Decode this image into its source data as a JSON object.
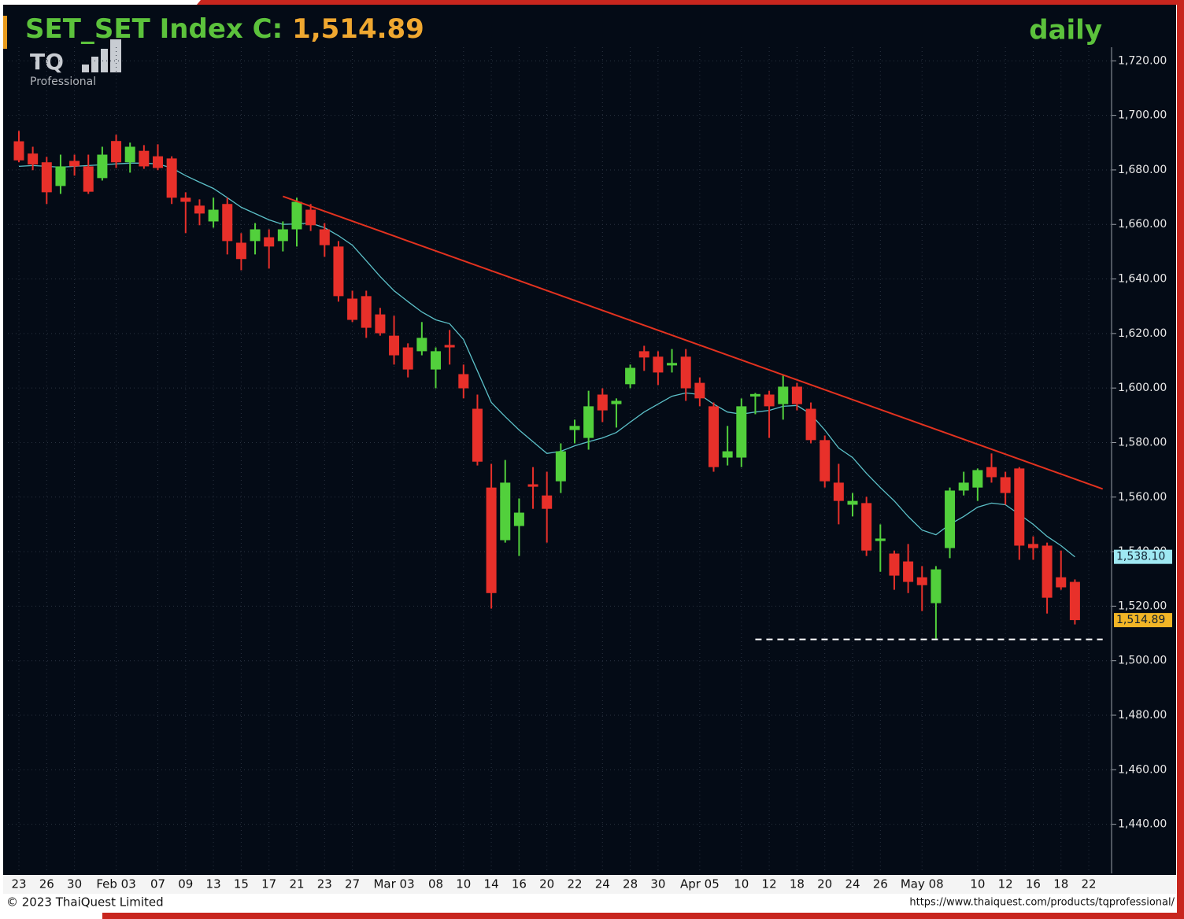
{
  "chart_data": {
    "type": "candlestick",
    "title": "SET_SET Index C:",
    "title_value": "1,514.89",
    "period": "daily",
    "logo": "TQ",
    "logo_sub": "Professional",
    "categories": [
      "23",
      null,
      "26",
      null,
      "30",
      null,
      null,
      "Feb 03",
      null,
      null,
      "07",
      null,
      "09",
      null,
      "13",
      null,
      "15",
      null,
      "17",
      null,
      "21",
      null,
      "23",
      null,
      "27",
      null,
      null,
      "Mar 03",
      null,
      null,
      "08",
      null,
      "10",
      null,
      "14",
      null,
      "16",
      null,
      "20",
      null,
      "22",
      null,
      "24",
      null,
      "28",
      null,
      "30",
      null,
      null,
      "Apr 05",
      null,
      null,
      "10",
      null,
      "12",
      null,
      "18",
      null,
      "20",
      null,
      "24",
      null,
      "26",
      null,
      null,
      "May 08",
      null,
      null,
      null,
      "10",
      null,
      "12",
      null,
      "16",
      null,
      "18",
      null,
      "22"
    ],
    "open": [
      1690.5,
      1686,
      1682.8,
      1674.1,
      1683.3,
      1681.3,
      1677,
      1690.6,
      1682.8,
      1687,
      1685,
      1684.2,
      1669.8,
      1666.9,
      1661.1,
      1667.5,
      1653.3,
      1653.9,
      1655.3,
      1653.9,
      1658.2,
      1665.4,
      1658.2,
      1651.9,
      1632.8,
      1633.7,
      1627,
      1619.2,
      1614.9,
      1613.5,
      1606.8,
      1615.8,
      1605.1,
      1592.4,
      1563.5,
      1544.2,
      1549.4,
      1564.7,
      1560.6,
      1565.8,
      1584.6,
      1581.7,
      1597.6,
      1594.1,
      1601.4,
      1613.5,
      1611.5,
      1608.3,
      1611.5,
      1601.9,
      1593.3,
      1574.5,
      1574.5,
      1596.9,
      1597.6,
      1594.1,
      1600.5,
      1592.4,
      1580.9,
      1565.3,
      1557.2,
      1557.8,
      1543.9,
      1539.3,
      1536.4,
      1530.6,
      1521.1,
      1541.3,
      1562.4,
      1563.5,
      1571,
      1567.3,
      1570.5,
      1542.8,
      1542.2,
      1530.6,
      1528.9,
      null
    ],
    "high": [
      1694.3,
      1688.5,
      1684.8,
      1685.6,
      1685.6,
      1685.6,
      1688.5,
      1692.9,
      1690,
      1689.1,
      1689.4,
      1685,
      1671.8,
      1669.2,
      1669.8,
      1669.8,
      1656.8,
      1660.5,
      1658.2,
      1661.1,
      1669.8,
      1667.5,
      1660.5,
      1653.9,
      1635.7,
      1635.7,
      1629.4,
      1626.5,
      1616.4,
      1624.2,
      1614.9,
      1621.3,
      1608.6,
      1597.6,
      1572.2,
      1573.6,
      1559.5,
      1571,
      1569.3,
      1579.7,
      1588.4,
      1599,
      1599.9,
      1596.2,
      1608.6,
      1615.5,
      1613.5,
      1614.3,
      1614.3,
      1603.9,
      1594.7,
      1586.1,
      1596.2,
      1598.2,
      1599,
      1604.8,
      1601.9,
      1594.7,
      1582.6,
      1572.2,
      1561.5,
      1560.1,
      1550,
      1540.4,
      1542.8,
      1534.7,
      1534.7,
      1563.5,
      1569.3,
      1570.5,
      1576,
      1569.3,
      1571,
      1545.6,
      1543.3,
      1540.4,
      1529.8,
      null
    ],
    "low": [
      1682.8,
      1679.9,
      1667.5,
      1671.2,
      1677.9,
      1671.2,
      1676.1,
      1680.7,
      1679,
      1680.4,
      1679.9,
      1667.5,
      1656.8,
      1659.7,
      1658.8,
      1649,
      1643.2,
      1649,
      1643.8,
      1650.1,
      1651.9,
      1657.6,
      1648.1,
      1631.7,
      1624.2,
      1618.4,
      1619.2,
      1608.6,
      1603.9,
      1612,
      1599.9,
      1608.6,
      1596.2,
      1571.6,
      1519.1,
      1543.3,
      1538.4,
      1555.7,
      1543.3,
      1561.5,
      1579.7,
      1577.4,
      1587.5,
      1585.5,
      1599.9,
      1606.3,
      1601.1,
      1605.7,
      1595.3,
      1593.3,
      1569.3,
      1571.6,
      1571,
      1590.4,
      1581.7,
      1588.4,
      1591.8,
      1579.7,
      1563.5,
      1550,
      1552.9,
      1538.4,
      1532.6,
      1526,
      1524.8,
      1518.2,
      1508.1,
      1537.6,
      1560.6,
      1558.6,
      1565.3,
      1557.2,
      1537,
      1537,
      1517.3,
      1526,
      1513.3,
      null
    ],
    "close": [
      1683.5,
      1682,
      1671.8,
      1681.3,
      1681.3,
      1672,
      1685.6,
      1682.8,
      1688.5,
      1681.3,
      1680.7,
      1669.8,
      1668.3,
      1664,
      1665.4,
      1653.9,
      1647.3,
      1658.2,
      1651.9,
      1658.2,
      1668.3,
      1659.7,
      1652.4,
      1633.7,
      1625,
      1622.1,
      1620.1,
      1612,
      1606.8,
      1618.4,
      1613.5,
      1614.9,
      1599.9,
      1573,
      1524.8,
      1565.3,
      1554.3,
      1563.8,
      1555.7,
      1576.8,
      1586.1,
      1593.3,
      1591.8,
      1595.3,
      1607.4,
      1611.2,
      1605.7,
      1609.2,
      1599.9,
      1596.2,
      1571,
      1576.8,
      1593.3,
      1597.8,
      1593.3,
      1600.5,
      1594.1,
      1580.9,
      1565.8,
      1558.6,
      1558.6,
      1540.4,
      1544.8,
      1531.2,
      1528.9,
      1527.7,
      1533.5,
      1562.4,
      1565.3,
      1569.9,
      1567.3,
      1561.5,
      1542.2,
      1541.3,
      1523.1,
      1526.9,
      1514.89,
      null
    ],
    "up_color": "#52d03c",
    "down_color": "#e8302a",
    "close_label": "1,514.89",
    "close_label_color": "#f2b526",
    "ma": {
      "color": "#5cc0c8",
      "label_color": "#9fe8f2",
      "last_label": "1,538.10",
      "values": [
        1681.3,
        1681.6,
        1681.3,
        1681,
        1681.3,
        1681.6,
        1681.9,
        1682.2,
        1682.5,
        1682.5,
        1682.2,
        1680.7,
        1677.9,
        1675.5,
        1673.2,
        1669.8,
        1666.3,
        1664,
        1661.7,
        1660,
        1660.2,
        1660.5,
        1658.8,
        1655.9,
        1652.4,
        1646.7,
        1640.9,
        1635.7,
        1631.7,
        1627.9,
        1625,
        1623.6,
        1617.8,
        1606.3,
        1594.7,
        1589.5,
        1584.6,
        1580.3,
        1576,
        1576.8,
        1578.8,
        1580.3,
        1581.7,
        1583.7,
        1587.5,
        1591.2,
        1594.1,
        1597,
        1598.2,
        1597.6,
        1594.1,
        1591.2,
        1590.4,
        1591.2,
        1591.8,
        1593.3,
        1593.6,
        1590.4,
        1584.6,
        1578,
        1574.5,
        1568.7,
        1563.5,
        1558.6,
        1552.9,
        1547.9,
        1546.2,
        1550,
        1552.9,
        1556.3,
        1557.8,
        1557.2,
        1553.7,
        1550,
        1545.6,
        1542.2,
        1538.1,
        null
      ]
    },
    "lines": [
      {
        "color": "#e3321f",
        "dashed": false,
        "x": [
          19,
          78
        ],
        "y": [
          1670.3,
          1563
        ]
      },
      {
        "color": "#ffffff",
        "dashed": true,
        "x": [
          53,
          78
        ],
        "y": [
          1507.8,
          1507.8
        ]
      }
    ],
    "ylim": [
      1422,
      1725
    ],
    "yticks": [
      {
        "value": 1440,
        "label": "1,440.00"
      },
      {
        "value": 1460,
        "label": "1,460.00"
      },
      {
        "value": 1480,
        "label": "1,480.00"
      },
      {
        "value": 1500,
        "label": "1,500.00"
      },
      {
        "value": 1520,
        "label": "1,520.00"
      },
      {
        "value": 1540,
        "label": "1,540.00"
      },
      {
        "value": 1560,
        "label": "1,560.00"
      },
      {
        "value": 1580,
        "label": "1,580.00"
      },
      {
        "value": 1600,
        "label": "1,600.00"
      },
      {
        "value": 1620,
        "label": "1,620.00"
      },
      {
        "value": 1640,
        "label": "1,640.00"
      },
      {
        "value": 1660,
        "label": "1,660.00"
      },
      {
        "value": 1680,
        "label": "1,680.00"
      },
      {
        "value": 1700,
        "label": "1,700.00"
      },
      {
        "value": 1720,
        "label": "1,720.00"
      }
    ],
    "grid": true
  },
  "footer": {
    "copyright": "© 2023 ThaiQuest Limited",
    "url": "https://www.thaiquest.com/products/tqprofessional/"
  }
}
